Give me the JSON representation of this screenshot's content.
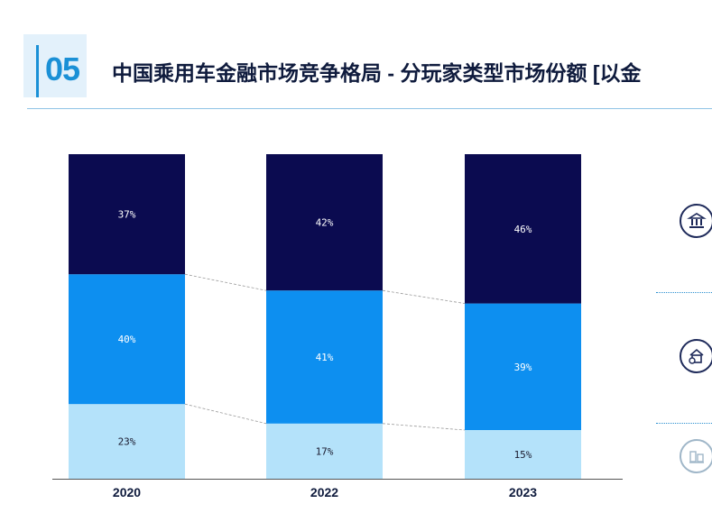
{
  "header": {
    "number": "05",
    "title": "中国乘用车金融市场竞争格局 - 分玩家类型市场份额 [以金"
  },
  "colors": {
    "accent": "#1a90d6",
    "series_dark": "#0b0b50",
    "series_mid": "#0d8ff0",
    "series_light": "#b4e2fa"
  },
  "legend_icons": [
    {
      "name": "bank-icon"
    },
    {
      "name": "house-money-icon"
    },
    {
      "name": "other-institution-icon"
    }
  ],
  "chart_data": {
    "type": "bar",
    "stacked": true,
    "normalized": true,
    "categories": [
      "2020",
      "2022",
      "2023"
    ],
    "series": [
      {
        "values": [
          23,
          17,
          15
        ],
        "labels": [
          "23%",
          "17%",
          "15%"
        ],
        "color": "#b4e2fa"
      },
      {
        "values": [
          40,
          41,
          39
        ],
        "labels": [
          "40%",
          "41%",
          "39%"
        ],
        "color": "#0d8ff0"
      },
      {
        "values": [
          37,
          42,
          46
        ],
        "labels": [
          "37%",
          "42%",
          "46%"
        ],
        "color": "#0b0b50"
      }
    ],
    "ylim": [
      0,
      100
    ],
    "grid": false,
    "connectors": true
  }
}
